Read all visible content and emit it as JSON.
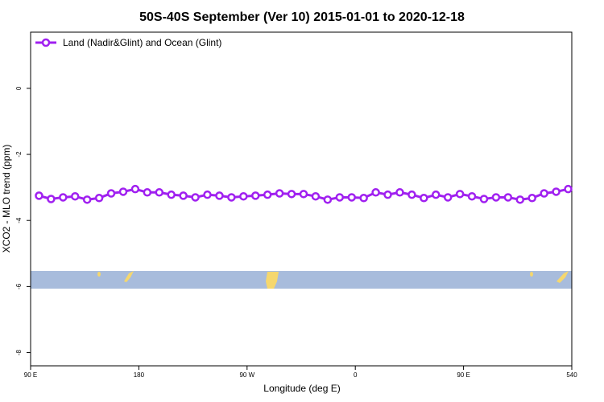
{
  "chart_data": {
    "type": "line",
    "title": "50S-40S September (Ver 10)   2015-01-01 to 2020-12-18",
    "x_label": "Longitude (deg E)",
    "y_label": "XCO2 - MLO trend (ppm)",
    "xlim": [
      90,
      540
    ],
    "xticks": [
      {
        "value": 90,
        "label": "90 E"
      },
      180,
      {
        "value": 270,
        "label": "90 W"
      },
      {
        "value": 360,
        "label": "0"
      },
      {
        "value": 450,
        "label": "90 E"
      },
      540
    ],
    "ylim": [
      -8.4,
      1.7
    ],
    "yticks": [
      0,
      -2,
      -4,
      -6,
      -8
    ],
    "legend": "top-left",
    "x": [
      97,
      107,
      117,
      127,
      137,
      147,
      157,
      167,
      177,
      187,
      197,
      207,
      217,
      227,
      237,
      247,
      257,
      267,
      277,
      287,
      297,
      307,
      317,
      327,
      337,
      347,
      357,
      367,
      377,
      387,
      397,
      407,
      417,
      427,
      437,
      447,
      457,
      467,
      477,
      487,
      497,
      507,
      517,
      527,
      537
    ],
    "series": [
      {
        "name": "Land (Nadir&Glint) and Ocean (Glint)",
        "color": "#a020f0",
        "values": [
          -3.25,
          -3.35,
          -3.3,
          -3.27,
          -3.37,
          -3.32,
          -3.18,
          -3.13,
          -3.05,
          -3.15,
          -3.15,
          -3.22,
          -3.25,
          -3.3,
          -3.22,
          -3.25,
          -3.3,
          -3.27,
          -3.25,
          -3.22,
          -3.18,
          -3.2,
          -3.2,
          -3.27,
          -3.37,
          -3.3,
          -3.3,
          -3.32,
          -3.15,
          -3.22,
          -3.15,
          -3.22,
          -3.32,
          -3.22,
          -3.3,
          -3.2,
          -3.27,
          -3.35,
          -3.3,
          -3.3,
          -3.37,
          -3.32,
          -3.18,
          -3.13,
          -3.05
        ]
      }
    ]
  }
}
